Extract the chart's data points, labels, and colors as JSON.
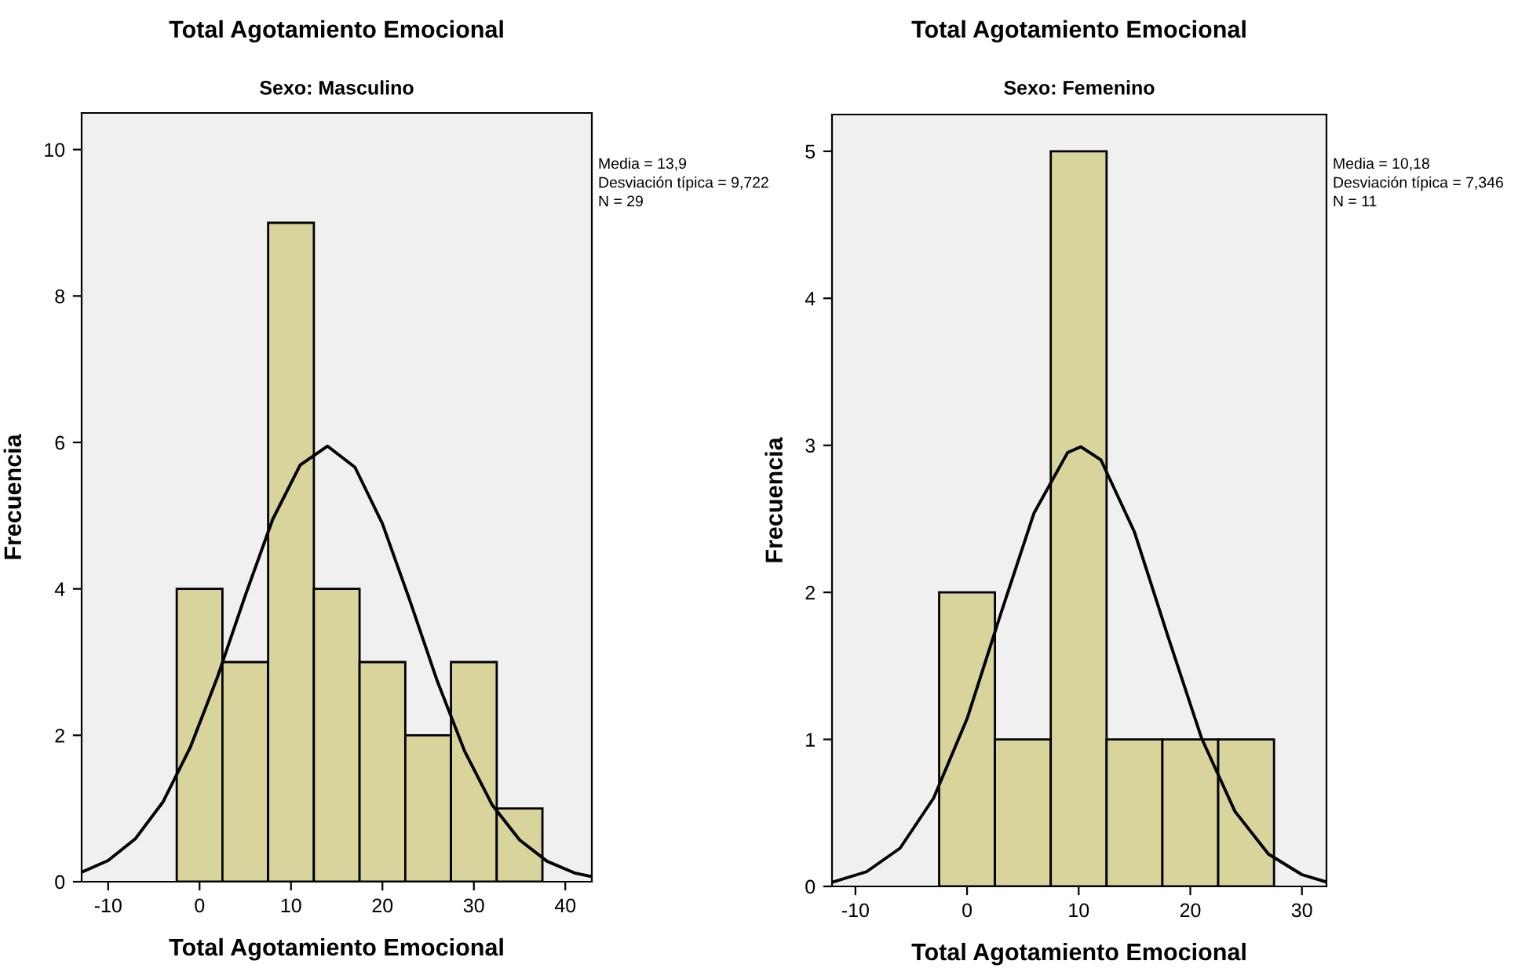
{
  "chart_data": [
    {
      "type": "histogram",
      "title": "Total Agotamiento Emocional",
      "subtitle": "Sexo: Masculino",
      "xlabel": "Total Agotamiento Emocional",
      "ylabel": "Frecuencia",
      "annotations": [
        "Media = 13,9",
        "Desviación típica = 9,722",
        "N = 29"
      ],
      "series": [
        {
          "color": "#d8d49c",
          "bins": [
            -2.5,
            2.5,
            7.5,
            12.5,
            17.5,
            22.5,
            27.5,
            32.5,
            37.5
          ],
          "values": [
            4,
            3,
            9,
            4,
            3,
            2,
            3,
            1
          ]
        },
        {
          "type": "line",
          "color": "#000000",
          "x": [
            -12.9,
            -10,
            -7,
            -4,
            -1,
            2,
            5,
            8,
            11,
            14,
            17,
            20,
            23,
            26,
            29,
            32,
            35,
            38,
            41,
            42.9
          ],
          "values": [
            0.13,
            0.29,
            0.59,
            1.09,
            1.84,
            2.81,
            3.91,
            4.95,
            5.69,
            5.95,
            5.66,
            4.89,
            3.84,
            2.74,
            1.78,
            1.05,
            0.57,
            0.28,
            0.12,
            0.07
          ]
        }
      ],
      "xlim": [
        -12.9,
        42.9
      ],
      "xticks": [
        -10,
        0,
        10,
        20,
        30,
        40
      ],
      "ylim": [
        0,
        10.5
      ],
      "yticks": [
        0,
        2,
        4,
        6,
        8,
        10
      ],
      "grid": false,
      "legend": false
    },
    {
      "type": "histogram",
      "title": "Total Agotamiento Emocional",
      "subtitle": "Sexo: Femenino",
      "xlabel": "Total Agotamiento Emocional",
      "ylabel": "Frecuencia",
      "annotations": [
        "Media = 10,18",
        "Desviación típica = 7,346",
        "N = 11"
      ],
      "series": [
        {
          "color": "#d8d49c",
          "bins": [
            -2.5,
            2.5,
            7.5,
            12.5,
            17.5,
            22.5,
            27.5
          ],
          "values": [
            2,
            1,
            5,
            1,
            1,
            1
          ]
        },
        {
          "type": "line",
          "color": "#000000",
          "x": [
            -12,
            -9,
            -6,
            -3,
            0,
            3,
            6,
            9,
            10.2,
            12,
            15,
            18,
            21,
            24,
            27,
            30,
            32.2
          ],
          "values": [
            0.03,
            0.1,
            0.26,
            0.6,
            1.14,
            1.85,
            2.54,
            2.95,
            2.99,
            2.9,
            2.41,
            1.7,
            1.01,
            0.51,
            0.22,
            0.08,
            0.03
          ]
        }
      ],
      "xlim": [
        -12.1,
        32.2
      ],
      "xticks": [
        -10,
        0,
        10,
        20,
        30
      ],
      "ylim": [
        0,
        5.25
      ],
      "yticks": [
        0,
        1,
        2,
        3,
        4,
        5
      ],
      "grid": false,
      "legend": false
    }
  ]
}
